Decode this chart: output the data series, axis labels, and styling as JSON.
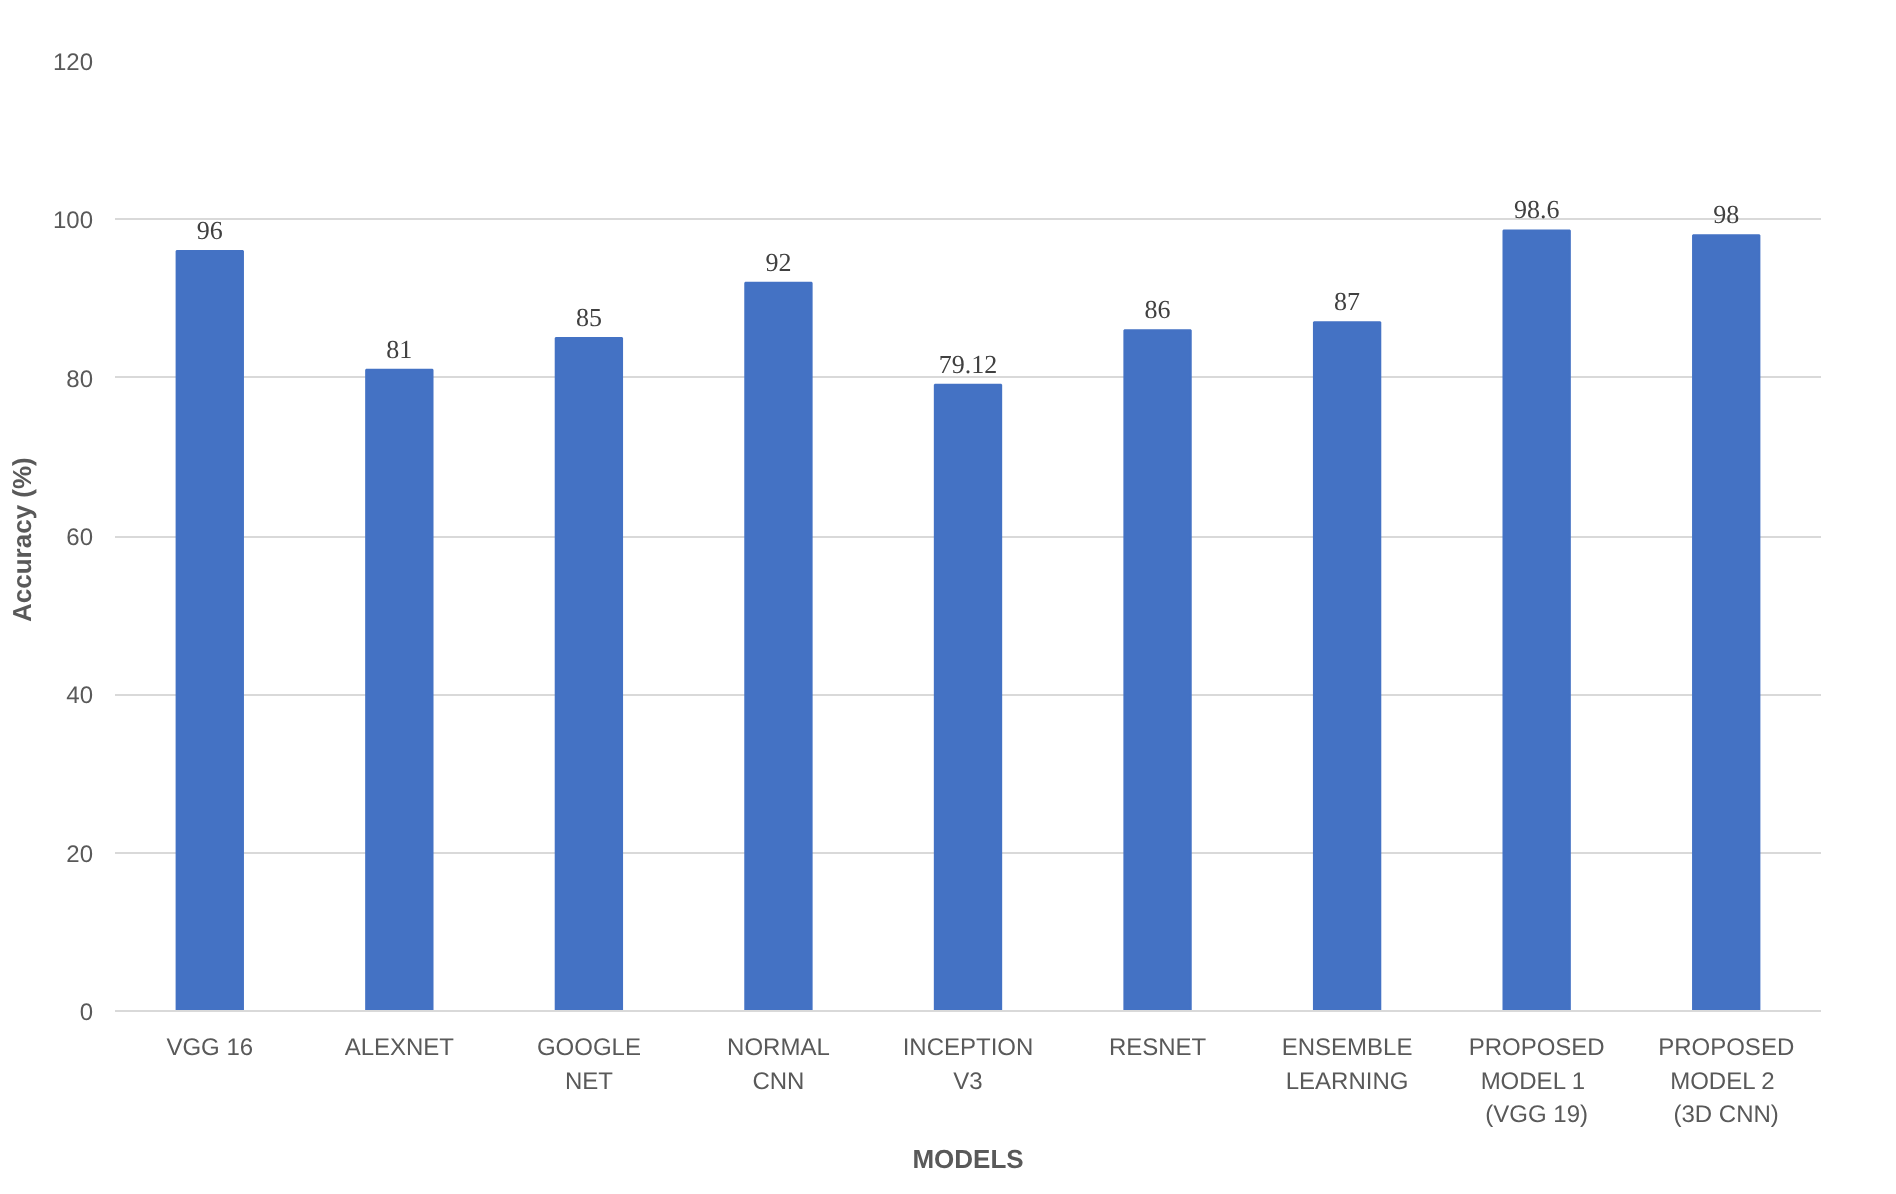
{
  "chart_data": {
    "type": "bar",
    "xlabel": "MODELS",
    "ylabel": "Accuracy  (%)",
    "categories": [
      "VGG 16",
      "ALEXNET",
      "GOOGLE\nNET",
      "NORMAL\nCNN",
      "INCEPTION\nV3",
      "RESNET",
      "ENSEMBLE\nLEARNING",
      "PROPOSED\nMODEL  1\n(VGG 19)",
      "PROPOSED\nMODEL  2\n(3D CNN)"
    ],
    "values": [
      96,
      81,
      85,
      92,
      79.12,
      86,
      87,
      98.6,
      98
    ],
    "color": "#4472c4",
    "ylim": [
      0,
      120
    ],
    "yticks": [
      0,
      20,
      40,
      60,
      80,
      100,
      120
    ],
    "grid": "y",
    "data_labels": true
  }
}
